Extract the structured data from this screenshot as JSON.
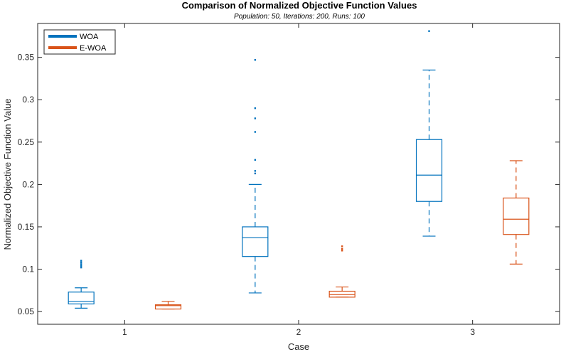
{
  "chart_data": {
    "type": "box",
    "title": "Comparison of Normalized Objective Function Values",
    "subtitle": "Population: 50, Iterations: 200, Runs: 100",
    "xlabel": "Case",
    "ylabel": "Normalized Objective Function Value",
    "categories": [
      "1",
      "2",
      "3"
    ],
    "xlim": [
      0.5,
      3.5
    ],
    "ylim": [
      0.035,
      0.39
    ],
    "yticks": [
      0.05,
      0.1,
      0.15,
      0.2,
      0.25,
      0.3,
      0.35
    ],
    "ytick_labels": [
      "0.05",
      "0.1",
      "0.15",
      "0.2",
      "0.25",
      "0.3",
      "0.35"
    ],
    "grid": false,
    "legend_position": "top-left",
    "series": [
      {
        "name": "WOA",
        "color": "#0072BD",
        "boxes": [
          {
            "category": "1",
            "min": 0.054,
            "q1": 0.059,
            "median": 0.062,
            "q3": 0.073,
            "max": 0.078,
            "outliers": [
              0.102,
              0.104,
              0.106,
              0.108,
              0.11
            ]
          },
          {
            "category": "2",
            "min": 0.072,
            "q1": 0.115,
            "median": 0.137,
            "q3": 0.15,
            "max": 0.2,
            "outliers": [
              0.347,
              0.29,
              0.278,
              0.262,
              0.229,
              0.216,
              0.213
            ]
          },
          {
            "category": "3",
            "min": 0.139,
            "q1": 0.18,
            "median": 0.211,
            "q3": 0.253,
            "max": 0.335,
            "outliers": [
              0.381
            ]
          }
        ]
      },
      {
        "name": "E-WOA",
        "color": "#D95319",
        "boxes": [
          {
            "category": "1",
            "min": 0.053,
            "q1": 0.053,
            "median": 0.057,
            "q3": 0.058,
            "max": 0.062,
            "outliers": []
          },
          {
            "category": "2",
            "min": 0.067,
            "q1": 0.067,
            "median": 0.07,
            "q3": 0.074,
            "max": 0.079,
            "outliers": [
              0.122,
              0.124,
              0.127
            ]
          },
          {
            "category": "3",
            "min": 0.106,
            "q1": 0.141,
            "median": 0.159,
            "q3": 0.184,
            "max": 0.228,
            "outliers": []
          }
        ]
      }
    ]
  }
}
